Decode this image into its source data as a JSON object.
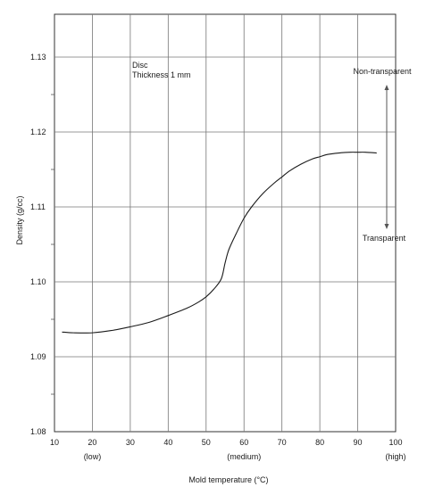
{
  "chart_data": {
    "type": "line",
    "xlabel": "Mold temperature (°C)",
    "ylabel": "Density (g/cc)",
    "xlim": [
      10,
      100
    ],
    "ylim": [
      1.08,
      1.135
    ],
    "x_ticks": [
      "10",
      "20",
      "30",
      "40",
      "50",
      "60",
      "70",
      "80",
      "90",
      "100"
    ],
    "y_ticks": [
      "1.08",
      "1.09",
      "1.10",
      "1.11",
      "1.12",
      "1.13"
    ],
    "x_qualitative": [
      {
        "x": 20,
        "label": "(low)"
      },
      {
        "x": 60,
        "label": "(medium)"
      },
      {
        "x": 100,
        "label": "(high)"
      }
    ],
    "annotations": {
      "specimen_line1": "Disc",
      "specimen_line2": "Thickness 1 mm",
      "top_label": "Non-transparent",
      "bottom_label": "Transparent"
    },
    "grid": true,
    "series": [
      {
        "x": [
          12,
          15,
          20,
          25,
          30,
          35,
          40,
          45,
          48,
          50,
          52,
          54,
          55,
          56,
          58,
          60,
          62,
          65,
          68,
          70,
          72,
          75,
          78,
          80,
          82,
          85,
          88,
          90,
          92,
          95
        ],
        "values": [
          1.0933,
          1.0932,
          1.0932,
          1.0935,
          1.094,
          1.0946,
          1.0955,
          1.0965,
          1.0973,
          1.098,
          1.099,
          1.1004,
          1.1025,
          1.1043,
          1.1065,
          1.1085,
          1.11,
          1.1118,
          1.1132,
          1.114,
          1.1148,
          1.1157,
          1.1164,
          1.1167,
          1.117,
          1.1172,
          1.1173,
          1.1173,
          1.1173,
          1.1172
        ]
      }
    ]
  }
}
